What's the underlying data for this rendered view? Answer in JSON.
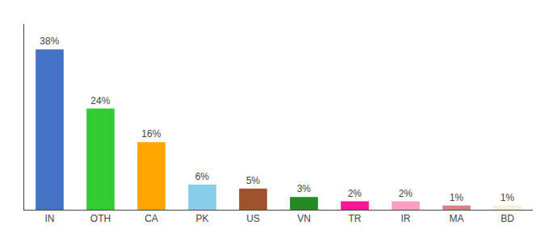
{
  "chart_data": {
    "type": "bar",
    "categories": [
      "IN",
      "OTH",
      "CA",
      "PK",
      "US",
      "VN",
      "TR",
      "IR",
      "MA",
      "BD"
    ],
    "values": [
      38,
      24,
      16,
      6,
      5,
      3,
      2,
      2,
      1,
      1
    ],
    "value_labels": [
      "38%",
      "24%",
      "16%",
      "6%",
      "5%",
      "3%",
      "2%",
      "2%",
      "1%",
      "1%"
    ],
    "colors": [
      "#4472C4",
      "#33CC33",
      "#FFA500",
      "#87CEEB",
      "#A0522D",
      "#228B22",
      "#FF1493",
      "#FF9EC4",
      "#D98080",
      "#F5F0DC"
    ],
    "ylim": [
      0,
      44
    ],
    "tick_labels": "x",
    "grid": false,
    "data_labels": true
  }
}
